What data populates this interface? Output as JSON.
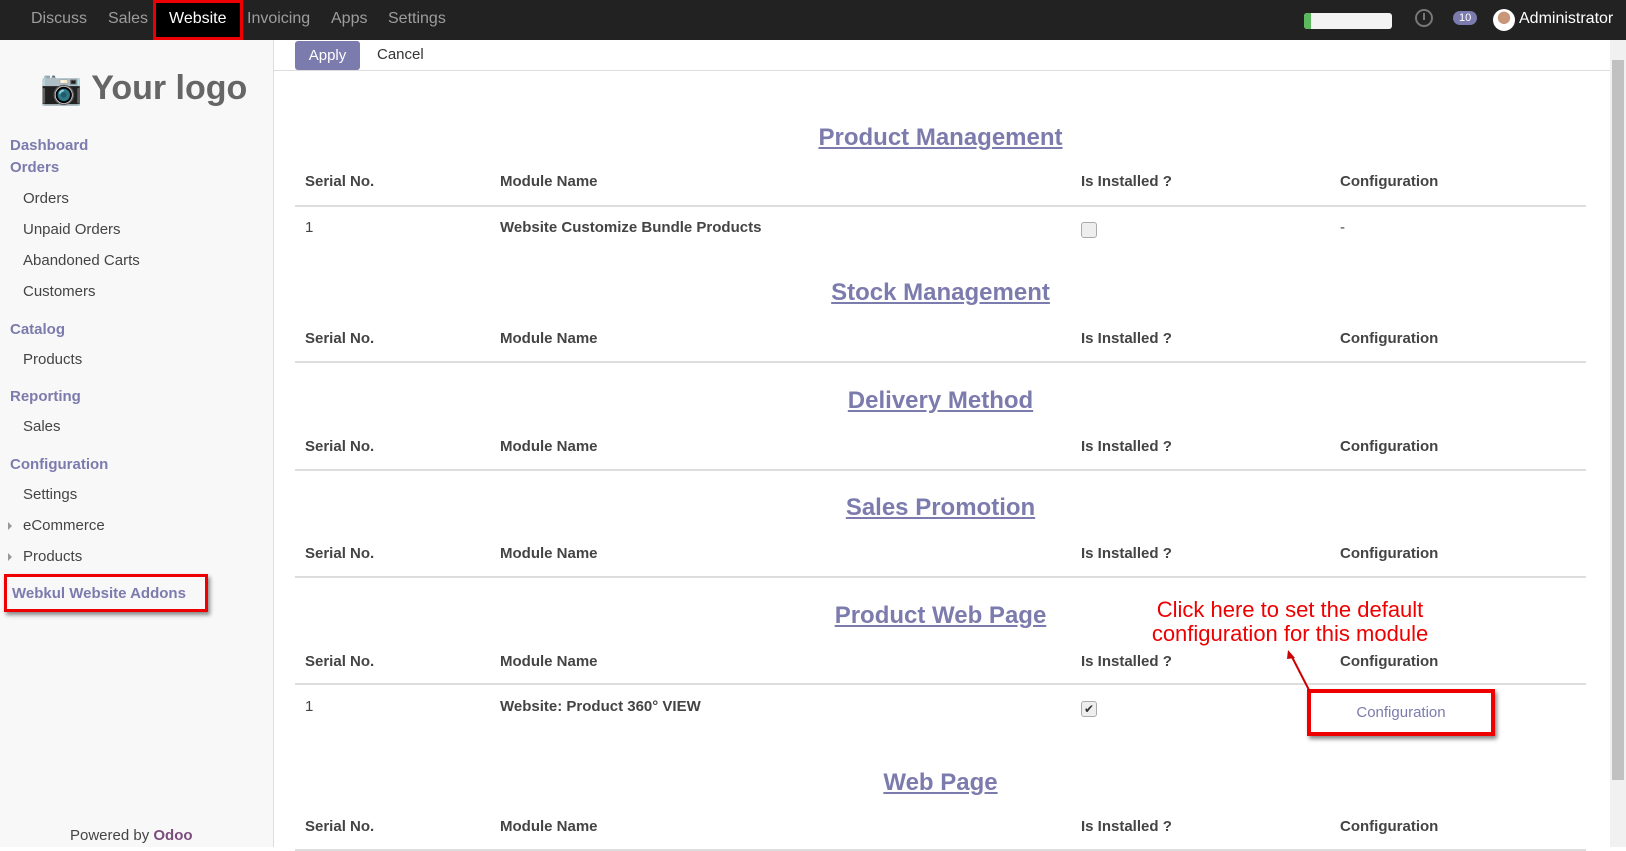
{
  "topbar": {
    "nav": [
      "Discuss",
      "Sales",
      "Website",
      "Invoicing",
      "Apps",
      "Settings"
    ],
    "active": "Website",
    "progress_percent": 8,
    "messages_count": "10",
    "user": "Administrator"
  },
  "sidebar": {
    "logo": "Your logo",
    "dashboard": "Dashboard",
    "orders_header": "Orders",
    "orders": [
      "Orders",
      "Unpaid Orders",
      "Abandoned Carts",
      "Customers"
    ],
    "catalog": "Catalog",
    "catalog_items": [
      "Products"
    ],
    "reporting": "Reporting",
    "reporting_items": [
      "Sales"
    ],
    "configuration": "Configuration",
    "config_items": [
      "Settings",
      "eCommerce",
      "Products"
    ],
    "addons": "Webkul Website Addons",
    "powered_by": "Powered by",
    "odoo": "Odoo"
  },
  "toolbar": {
    "apply": "Apply",
    "cancel": "Cancel"
  },
  "columns": [
    "Serial No.",
    "Module Name",
    "Is Installed ?",
    "Configuration"
  ],
  "sections": [
    {
      "title": "Product Management",
      "rows": [
        {
          "serial": "1",
          "name": "Website Customize Bundle Products",
          "installed": false,
          "config": "-"
        }
      ]
    },
    {
      "title": "Stock Management",
      "rows": []
    },
    {
      "title": "Delivery Method",
      "rows": []
    },
    {
      "title": "Sales Promotion",
      "rows": []
    },
    {
      "title": "Product Web Page",
      "rows": [
        {
          "serial": "1",
          "name": "Website: Product 360° VIEW",
          "installed": true,
          "config": "Configuration"
        }
      ]
    },
    {
      "title": "Web Page",
      "rows": []
    }
  ],
  "annotation": "Click here to set the default configuration for this module",
  "colors": {
    "accent": "#7c7bad",
    "highlight": "#e00000",
    "topbar": "#222222"
  }
}
